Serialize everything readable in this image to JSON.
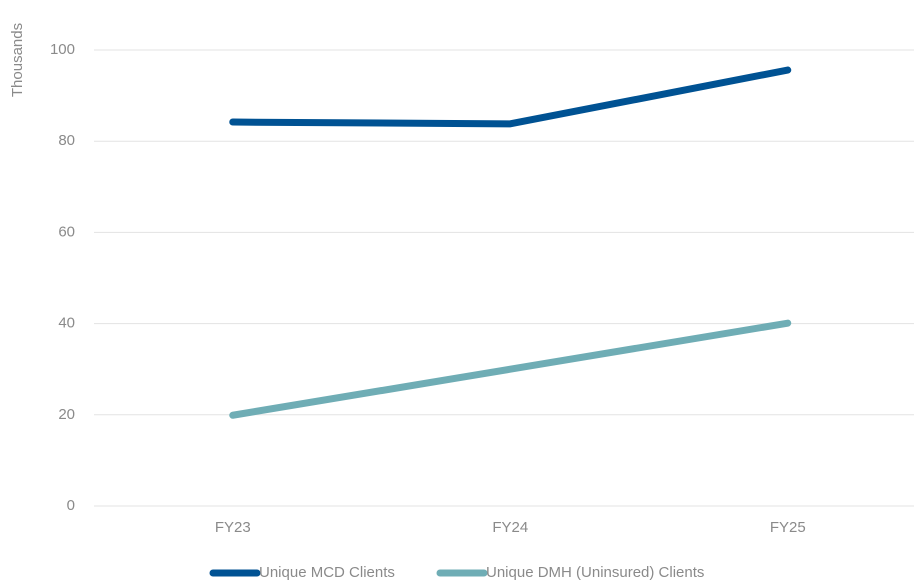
{
  "chart_data": {
    "type": "line",
    "y_axis_label": "Thousands",
    "categories": [
      "FY23",
      "FY24",
      "FY25"
    ],
    "series": [
      {
        "name": "Unique MCD Clients",
        "color": "#005293",
        "values": [
          84.2,
          83.8,
          95.6
        ]
      },
      {
        "name": "Unique DMH (Uninsured) Clients",
        "color": "#6fadb5",
        "values": [
          19.9,
          30.0,
          40.1
        ]
      }
    ],
    "ylim": [
      0,
      100
    ],
    "yticks": [
      0,
      20,
      40,
      60,
      80,
      100
    ],
    "grid": true,
    "legend": "bottom"
  }
}
